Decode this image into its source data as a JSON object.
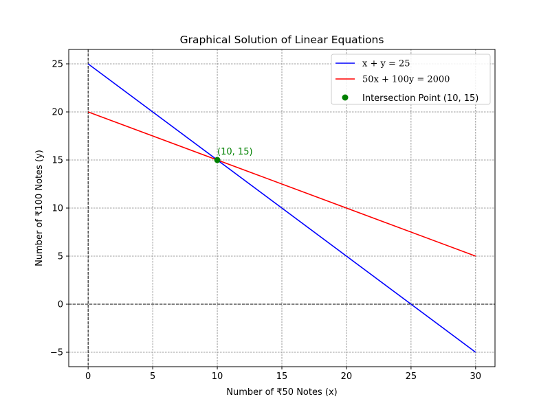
{
  "chart_data": {
    "type": "line",
    "title": "Graphical Solution of Linear Equations",
    "xlabel": "Number of ₹50 Notes (x)",
    "ylabel": "Number of ₹100 Notes (y)",
    "xlim": [
      -1.5,
      31.5
    ],
    "ylim": [
      -6.5,
      26.5
    ],
    "xticks": [
      0,
      5,
      10,
      15,
      20,
      25,
      30
    ],
    "yticks": [
      -5,
      0,
      5,
      10,
      15,
      20,
      25
    ],
    "xtick_labels": [
      "0",
      "5",
      "10",
      "15",
      "20",
      "25",
      "30"
    ],
    "ytick_labels": [
      "−5",
      "0",
      "5",
      "10",
      "15",
      "20",
      "25"
    ],
    "grid": true,
    "legend_position": "top-right",
    "series": [
      {
        "name": "x + y = 25",
        "color": "#0000ff",
        "x": [
          0,
          30
        ],
        "y": [
          25,
          -5
        ]
      },
      {
        "name": "50x + 100y = 2000",
        "color": "#ff0000",
        "x": [
          0,
          30
        ],
        "y": [
          20,
          5
        ]
      }
    ],
    "points": [
      {
        "name": "Intersection Point (10, 15)",
        "color": "#008000",
        "x": 10,
        "y": 15
      }
    ],
    "annotations": [
      {
        "text": "(10, 15)",
        "x": 10,
        "y": 15,
        "color": "#008000"
      }
    ],
    "reference_lines": [
      {
        "axis": "x",
        "value": 0,
        "style": "dashed",
        "color": "#000000"
      },
      {
        "axis": "y",
        "value": 0,
        "style": "dashed",
        "color": "#000000"
      }
    ]
  }
}
